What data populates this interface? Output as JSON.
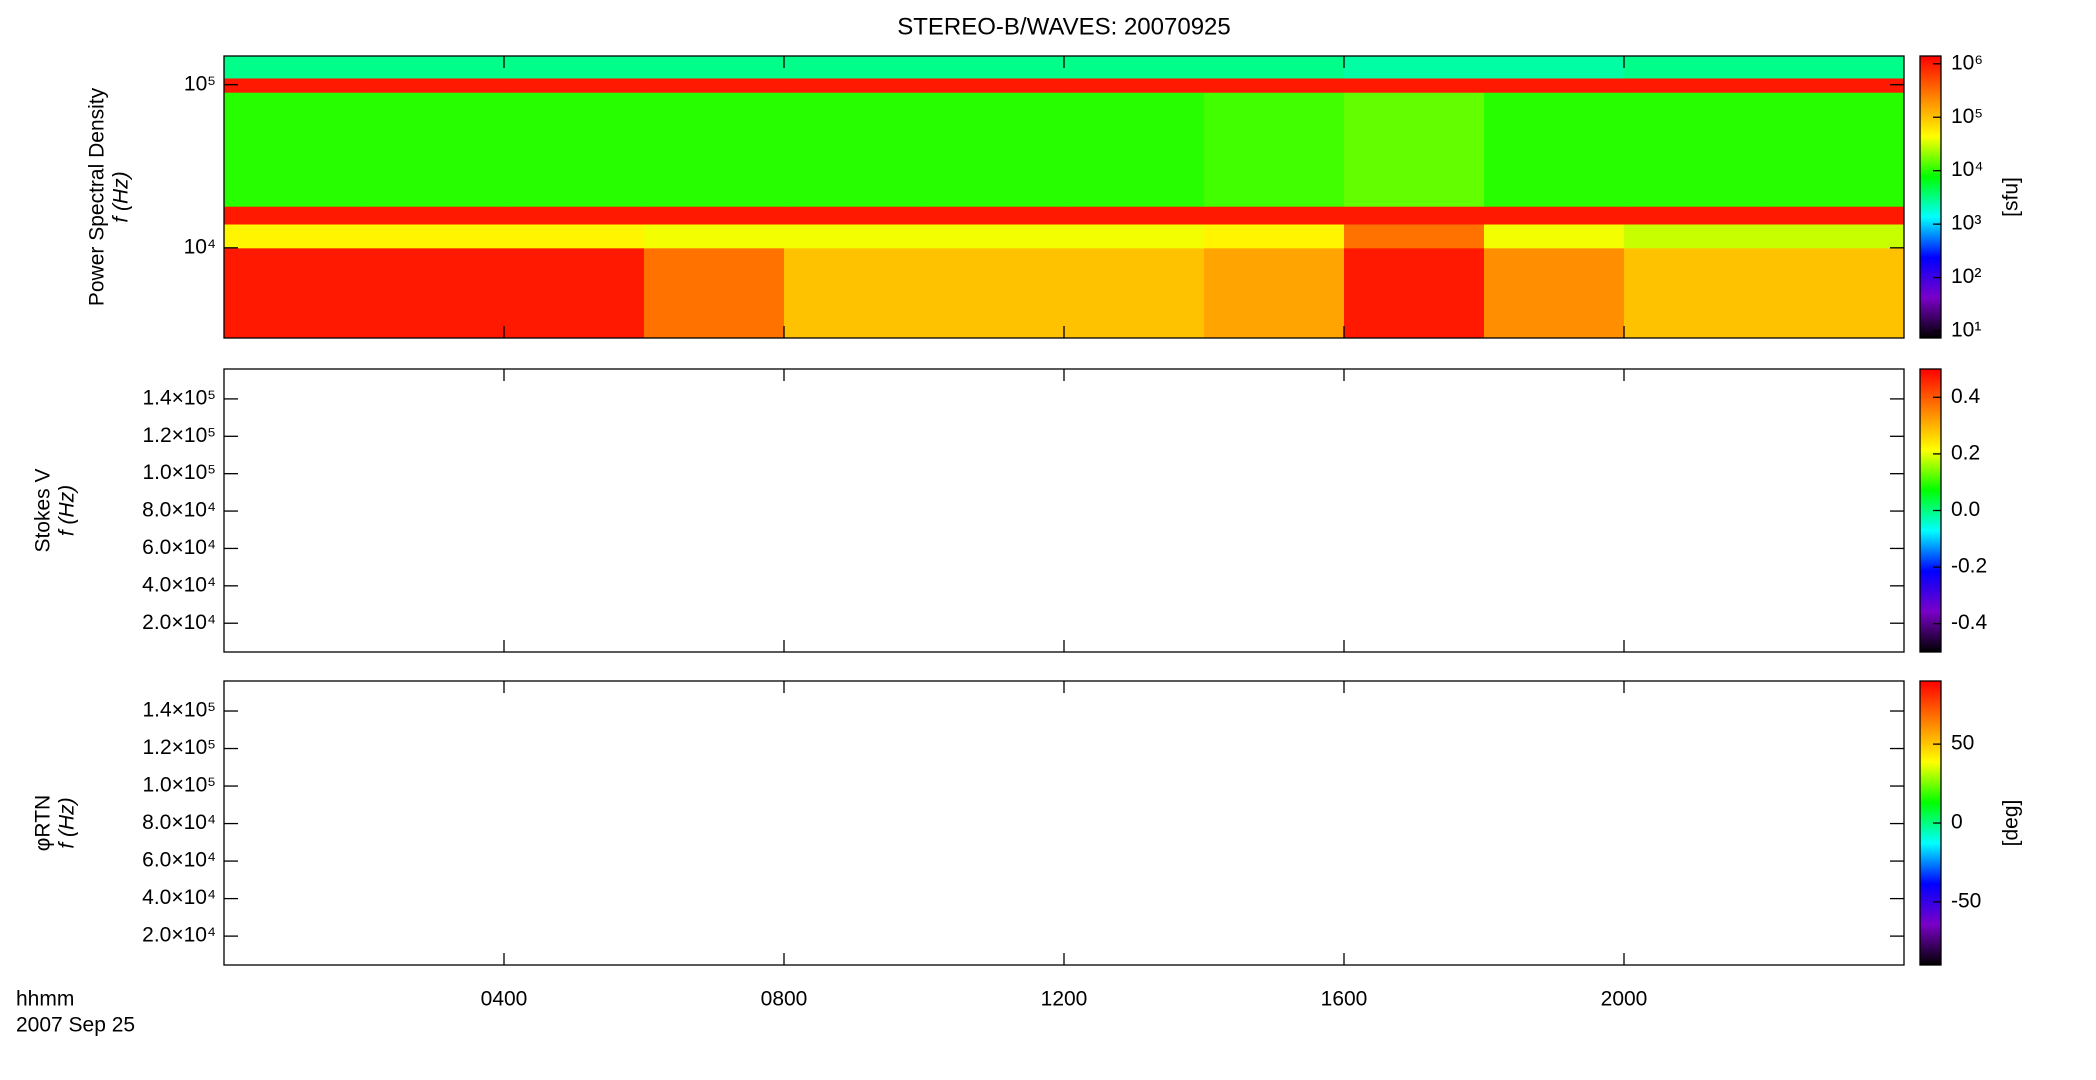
{
  "chart_data": [
    {
      "type": "heatmap",
      "title": "STEREO-B/WAVES: 20070925",
      "ylabel": [
        "Power Spectral Density",
        "f (Hz)"
      ],
      "xlim": [
        0,
        24
      ],
      "xticks": [
        4,
        8,
        12,
        16,
        20
      ],
      "ylog": true,
      "ylim": [
        2800,
        150000
      ],
      "yticks": [
        {
          "value": 10000,
          "label": "10⁴"
        },
        {
          "value": 100000,
          "label": "10⁵"
        }
      ],
      "x_bins": [
        0,
        2,
        4,
        6,
        8,
        10,
        12,
        14,
        16,
        18,
        20,
        22,
        24
      ],
      "y_bins": [
        2800,
        10000,
        14000,
        18000,
        90000,
        110000,
        150000
      ],
      "z": [
        [
          1000000,
          1000000,
          1000000,
          300000,
          100000,
          100000,
          100000,
          150000,
          1000000,
          200000,
          100000,
          100000
        ],
        [
          50000,
          50000,
          50000,
          40000,
          40000,
          40000,
          40000,
          50000,
          300000,
          40000,
          30000,
          30000
        ],
        [
          1000000,
          1000000,
          1000000,
          1000000,
          1000000,
          1000000,
          1000000,
          1000000,
          1000000,
          1000000,
          1000000,
          1000000
        ],
        [
          10000,
          10000,
          10000,
          10000,
          10000,
          10000,
          10000,
          12000,
          15000,
          10000,
          10000,
          10000
        ],
        [
          1000000,
          1000000,
          1000000,
          1000000,
          1000000,
          1000000,
          1000000,
          1000000,
          1000000,
          1000000,
          1000000,
          1000000
        ],
        [
          3000,
          3000,
          3000,
          3000,
          3000,
          3000,
          3000,
          3000,
          2500,
          2500,
          3000,
          3000
        ]
      ],
      "clog": true,
      "clim": [
        7.4,
        1400000
      ],
      "cticks": [
        {
          "value": 10,
          "label": "10¹"
        },
        {
          "value": 100,
          "label": "10²"
        },
        {
          "value": 1000,
          "label": "10³"
        },
        {
          "value": 10000,
          "label": "10⁴"
        },
        {
          "value": 100000,
          "label": "10⁵"
        },
        {
          "value": 1000000,
          "label": "10⁶"
        }
      ],
      "clabel": "[sfu]",
      "colormap": [
        "#000000",
        "#7a00c8",
        "#0000ff",
        "#00ffff",
        "#00ff00",
        "#ffff00",
        "#ff8000",
        "#ff0000"
      ]
    },
    {
      "type": "heatmap",
      "ylabel": [
        "Stokes V",
        "f (Hz)"
      ],
      "xlim": [
        0,
        24
      ],
      "xticks": [
        4,
        8,
        12,
        16,
        20
      ],
      "ylim": [
        4600,
        156000
      ],
      "yticks": [
        {
          "value": 20000,
          "label": "2.0×10⁴"
        },
        {
          "value": 40000,
          "label": "4.0×10⁴"
        },
        {
          "value": 60000,
          "label": "6.0×10⁴"
        },
        {
          "value": 80000,
          "label": "8.0×10⁴"
        },
        {
          "value": 100000,
          "label": "1.0×10⁵"
        },
        {
          "value": 120000,
          "label": "1.2×10⁵"
        },
        {
          "value": 140000,
          "label": "1.4×10⁵"
        }
      ],
      "clim": [
        -0.5,
        0.5
      ],
      "cticks": [
        {
          "value": -0.4,
          "label": "-0.4"
        },
        {
          "value": -0.2,
          "label": "-0.2"
        },
        {
          "value": 0,
          "label": "0.0"
        },
        {
          "value": 0.2,
          "label": "0.2"
        },
        {
          "value": 0.4,
          "label": "0.4"
        }
      ],
      "colormap": [
        "#000000",
        "#7a00c8",
        "#0000ff",
        "#00ffff",
        "#00ff00",
        "#ffff00",
        "#ff8000",
        "#ff0000"
      ]
    },
    {
      "type": "heatmap",
      "ylabel": [
        "φRTN",
        "f (Hz)"
      ],
      "xlim": [
        0,
        24
      ],
      "xticks": [
        {
          "value": 4,
          "label": "0400"
        },
        {
          "value": 8,
          "label": "0800"
        },
        {
          "value": 12,
          "label": "1200"
        },
        {
          "value": 16,
          "label": "1600"
        },
        {
          "value": 20,
          "label": "2000"
        }
      ],
      "xlabel": "hhmm",
      "date": "2007 Sep 25",
      "ylim": [
        4600,
        156000
      ],
      "yticks": [
        {
          "value": 20000,
          "label": "2.0×10⁴"
        },
        {
          "value": 40000,
          "label": "4.0×10⁴"
        },
        {
          "value": 60000,
          "label": "6.0×10⁴"
        },
        {
          "value": 80000,
          "label": "8.0×10⁴"
        },
        {
          "value": 100000,
          "label": "1.0×10⁵"
        },
        {
          "value": 120000,
          "label": "1.2×10⁵"
        },
        {
          "value": 140000,
          "label": "1.4×10⁵"
        }
      ],
      "clim": [
        -90,
        90
      ],
      "cticks": [
        -50,
        0,
        50
      ],
      "clabel": "[deg]",
      "colormap": [
        "#000000",
        "#7a00c8",
        "#0000ff",
        "#00ffff",
        "#00ff00",
        "#ffff00",
        "#ff8000",
        "#ff0000"
      ]
    }
  ]
}
